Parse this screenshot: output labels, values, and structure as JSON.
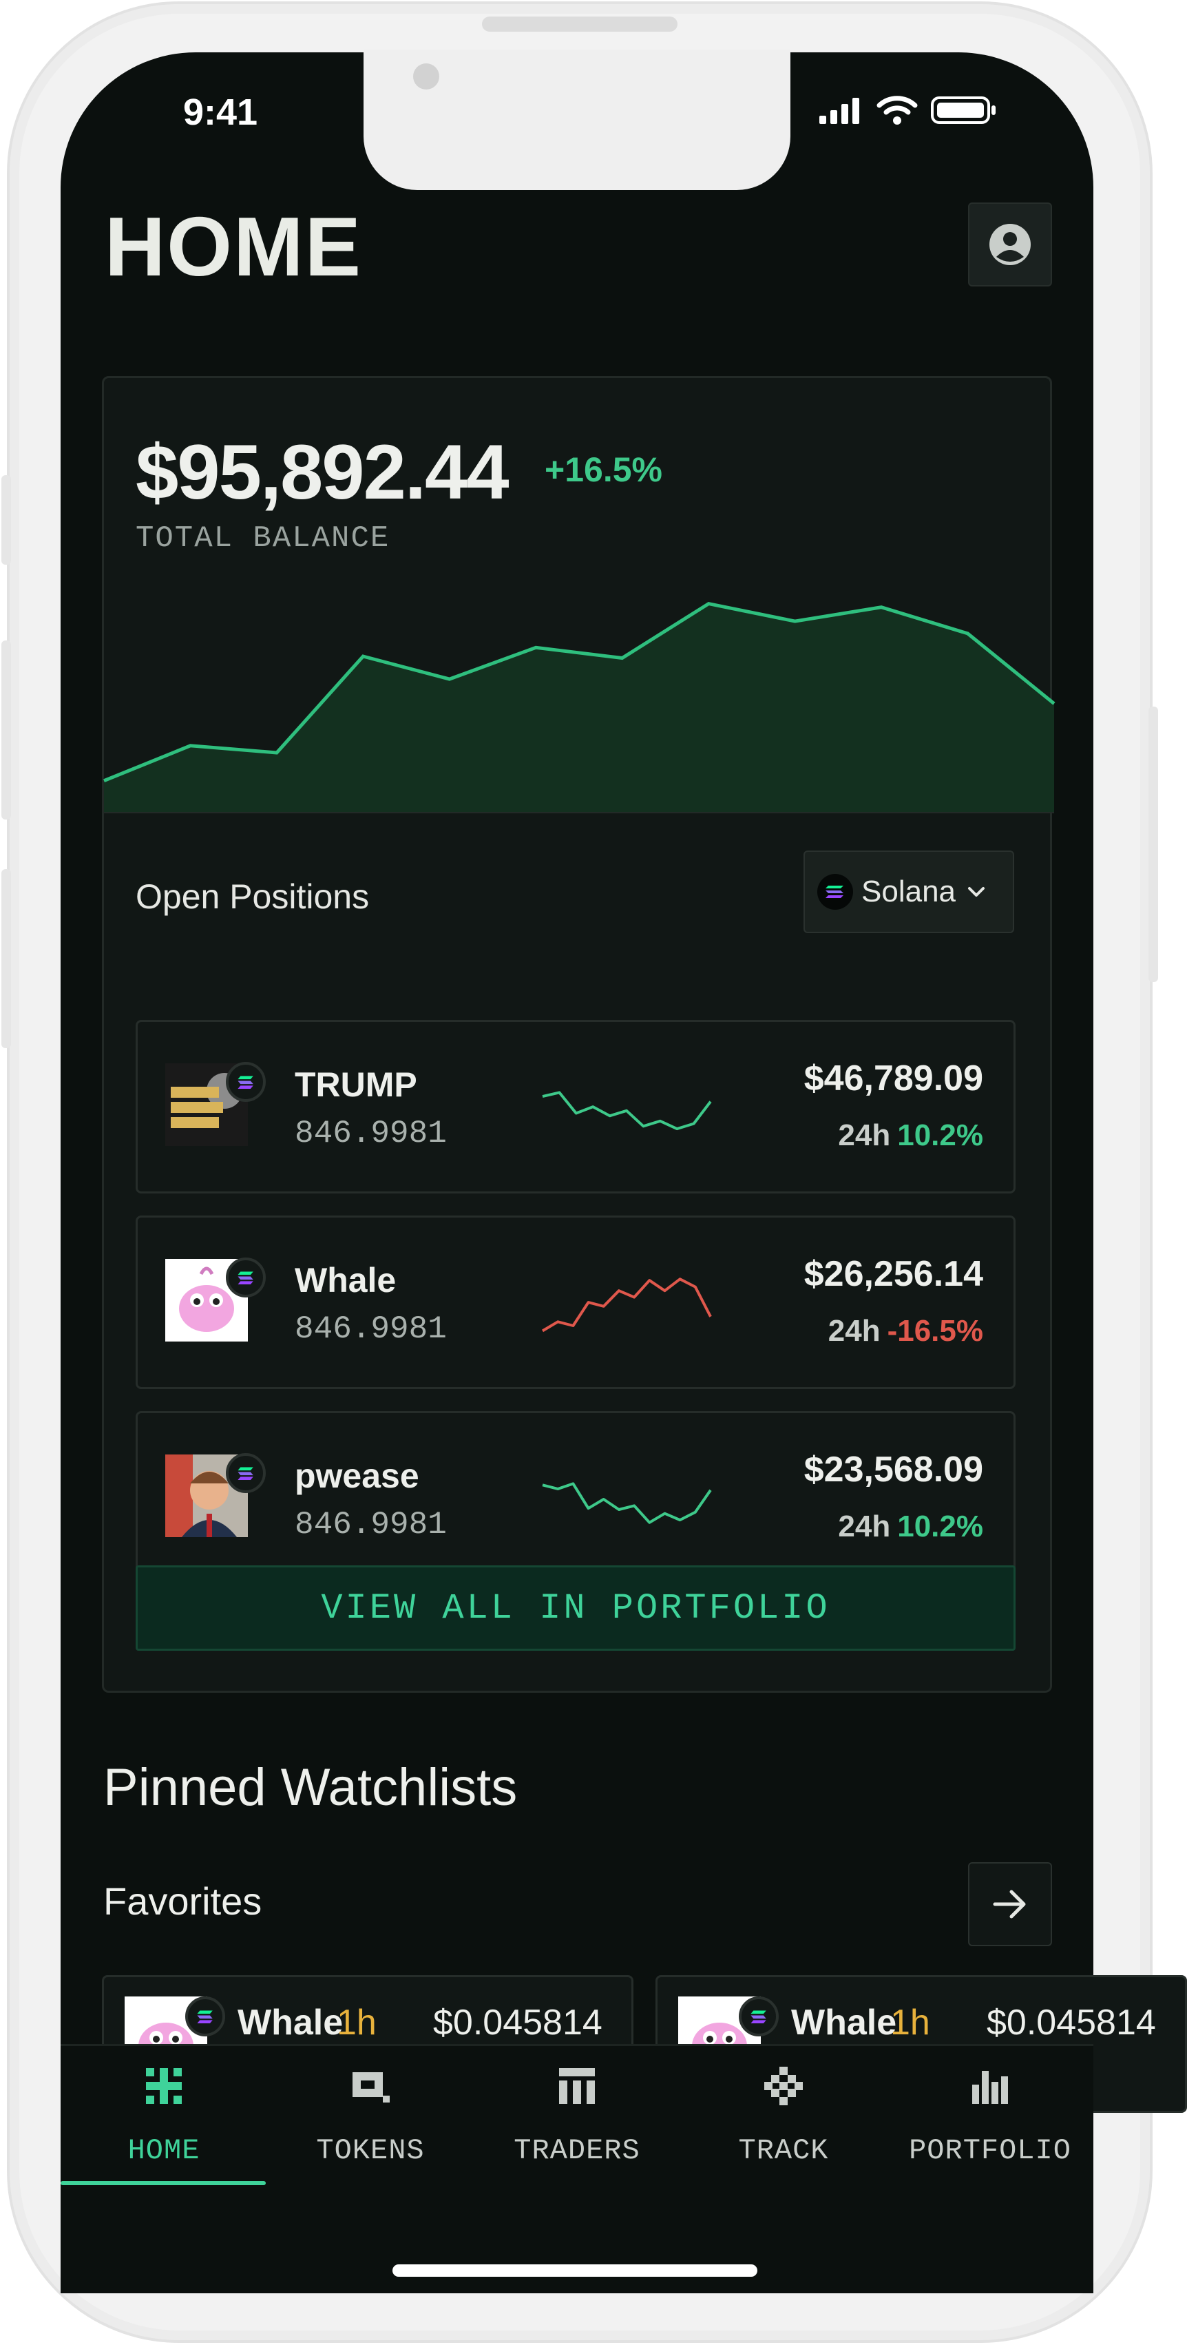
{
  "status_bar": {
    "time": "9:41"
  },
  "header": {
    "title": "HOME"
  },
  "balance": {
    "value": "$95,892.44",
    "change": "+16.5%",
    "label": "TOTAL BALANCE",
    "chart_values": [
      0.06,
      0.26,
      0.22,
      0.77,
      0.64,
      0.82,
      0.76,
      1.07,
      0.97,
      1.05,
      0.9,
      0.5
    ]
  },
  "positions": {
    "title": "Open Positions",
    "chain_selector": {
      "selected": "Solana",
      "icon": "solana-icon"
    },
    "items": [
      {
        "name": "TRUMP",
        "amount": "846.9981",
        "value": "$46,789.09",
        "period": "24h",
        "change": "10.2%",
        "direction": "up",
        "spark": [
          0.68,
          0.74,
          0.42,
          0.52,
          0.38,
          0.46,
          0.22,
          0.3,
          0.18,
          0.26,
          0.6
        ]
      },
      {
        "name": "Whale",
        "amount": "846.9981",
        "value": "$26,256.14",
        "period": "24h",
        "change": "-16.5%",
        "direction": "down",
        "spark": [
          0.08,
          0.22,
          0.16,
          0.52,
          0.46,
          0.7,
          0.6,
          0.86,
          0.7,
          0.88,
          0.76,
          0.3
        ]
      },
      {
        "name": "pwease",
        "amount": "846.9981",
        "value": "$23,568.09",
        "period": "24h",
        "change": "10.2%",
        "direction": "up",
        "spark": [
          0.72,
          0.66,
          0.74,
          0.36,
          0.5,
          0.34,
          0.4,
          0.14,
          0.28,
          0.18,
          0.3,
          0.64
        ]
      }
    ],
    "view_all_label": "VIEW ALL IN PORTFOLIO"
  },
  "watchlists": {
    "title": "Pinned Watchlists",
    "favorites_label": "Favorites",
    "cards": [
      {
        "name": "Whale",
        "time": "1h",
        "price": "$0.045814"
      },
      {
        "name": "Whale",
        "time": "1h",
        "price": "$0.045814"
      }
    ]
  },
  "bottom_nav": [
    {
      "label": "HOME",
      "icon": "home-icon",
      "active": true
    },
    {
      "label": "TOKENS",
      "icon": "tokens-icon",
      "active": false
    },
    {
      "label": "TRADERS",
      "icon": "traders-icon",
      "active": false
    },
    {
      "label": "TRACK",
      "icon": "track-icon",
      "active": false
    },
    {
      "label": "PORTFOLIO",
      "icon": "portfolio-icon",
      "active": false
    }
  ],
  "colors": {
    "accent_green": "#3ec98a",
    "negative_red": "#e0584c",
    "highlight_yellow": "#e8b23c",
    "background": "#0b100e"
  }
}
